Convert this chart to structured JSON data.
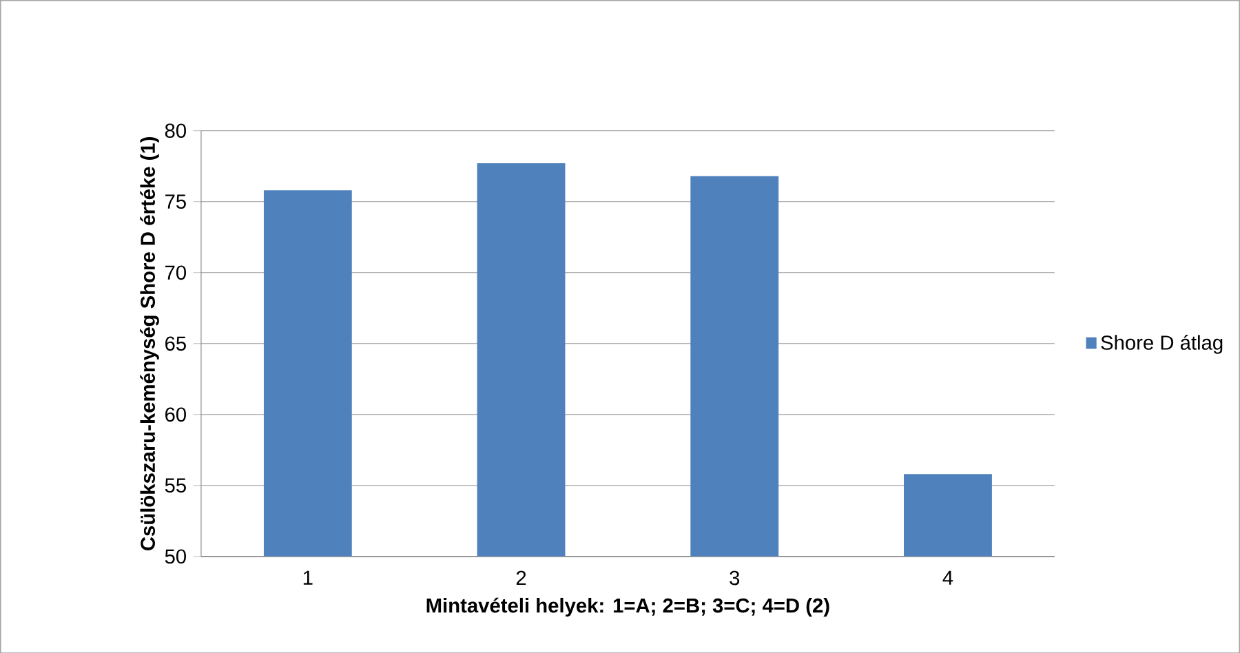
{
  "chart_data": {
    "type": "bar",
    "categories": [
      "1",
      "2",
      "3",
      "4"
    ],
    "series": [
      {
        "name": "Shore D átlag",
        "color": "#4f81bd",
        "values": [
          75.8,
          77.7,
          76.8,
          55.8
        ]
      }
    ],
    "xlabel": "Mintavételi helyek: 1=A; 2=B; 3=C; 4=D (2)",
    "ylabel": "Csülökszaru-keménység Shore D értéke (1)",
    "ylim": [
      50,
      80
    ],
    "yticks": [
      50,
      55,
      60,
      65,
      70,
      75,
      80
    ],
    "grid": "y",
    "legend": "right"
  }
}
